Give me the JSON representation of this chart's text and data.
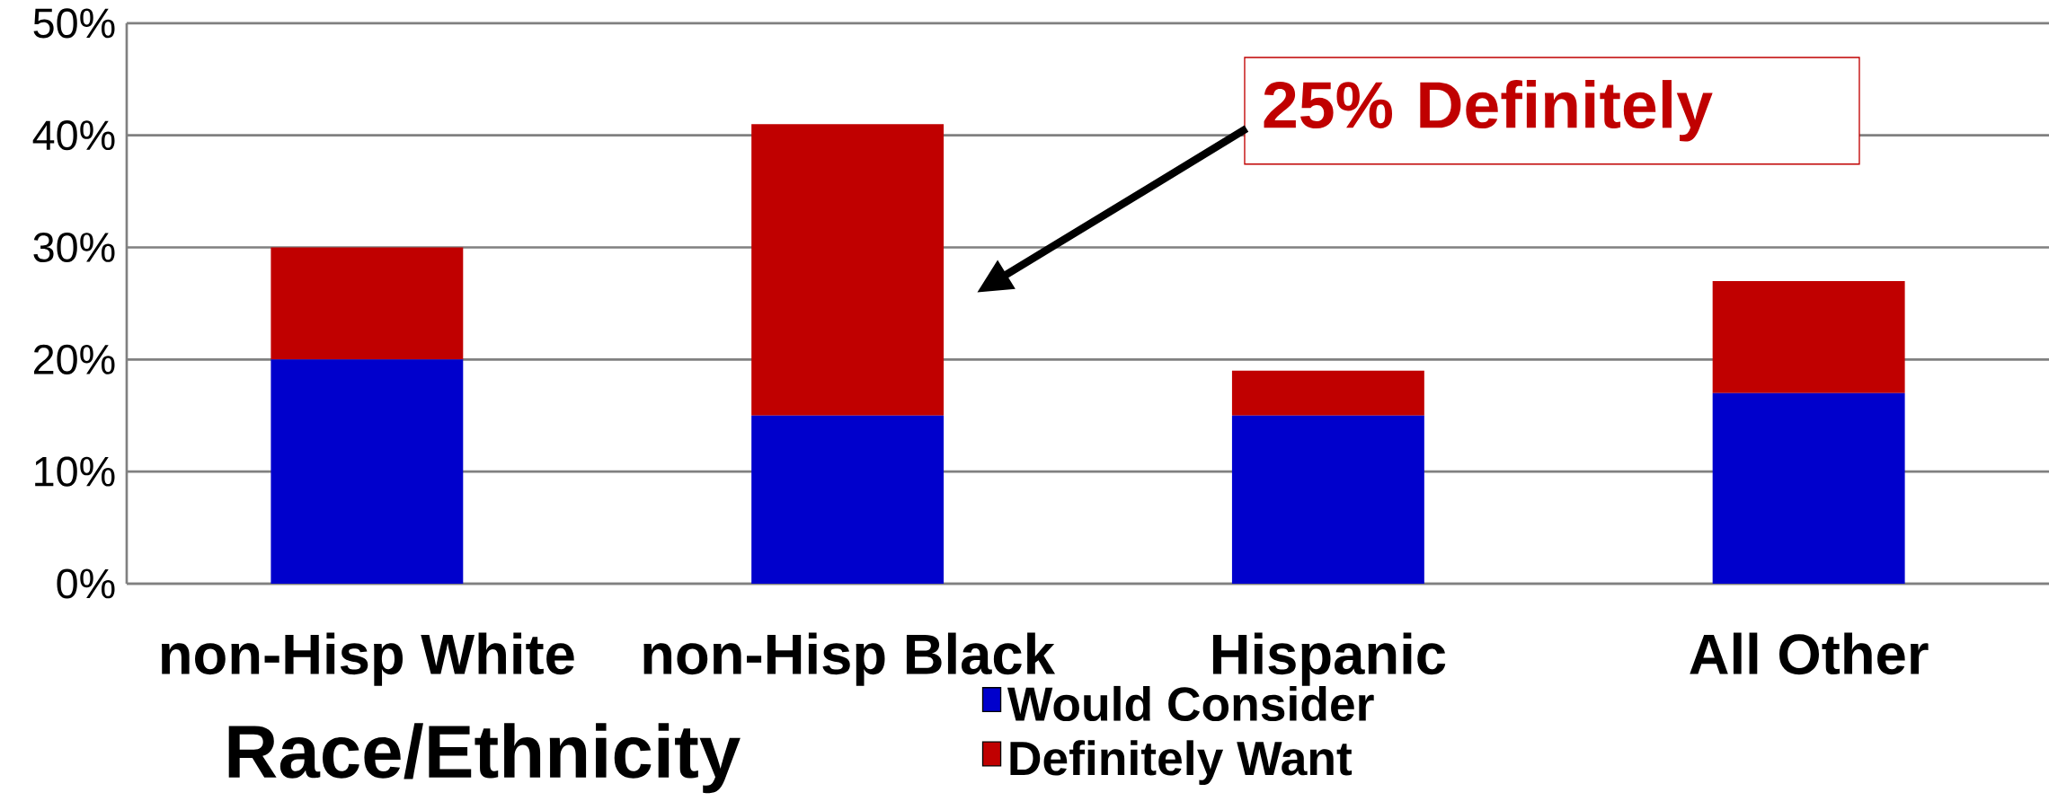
{
  "chart_data": {
    "type": "bar",
    "stacked": true,
    "categories": [
      "non-Hisp White",
      "non-Hisp Black",
      "Hispanic",
      "All Other"
    ],
    "series": [
      {
        "name": "Would Consider",
        "color": "#0000cc",
        "values": [
          20,
          15,
          15,
          17
        ]
      },
      {
        "name": "Definitely Want",
        "color": "#c00000",
        "values": [
          10,
          26,
          4,
          10
        ]
      }
    ],
    "xlabel": "Race/Ethnicity",
    "ylim": [
      0,
      50
    ],
    "yticks": [
      {
        "value": 0,
        "label": "0%"
      },
      {
        "value": 10,
        "label": "10%"
      },
      {
        "value": 20,
        "label": "20%"
      },
      {
        "value": 30,
        "label": "30%"
      },
      {
        "value": 40,
        "label": "40%"
      },
      {
        "value": 50,
        "label": "50%"
      }
    ],
    "grid": "y",
    "legend": "bottom",
    "annotations": [
      "25% Definitely"
    ]
  }
}
